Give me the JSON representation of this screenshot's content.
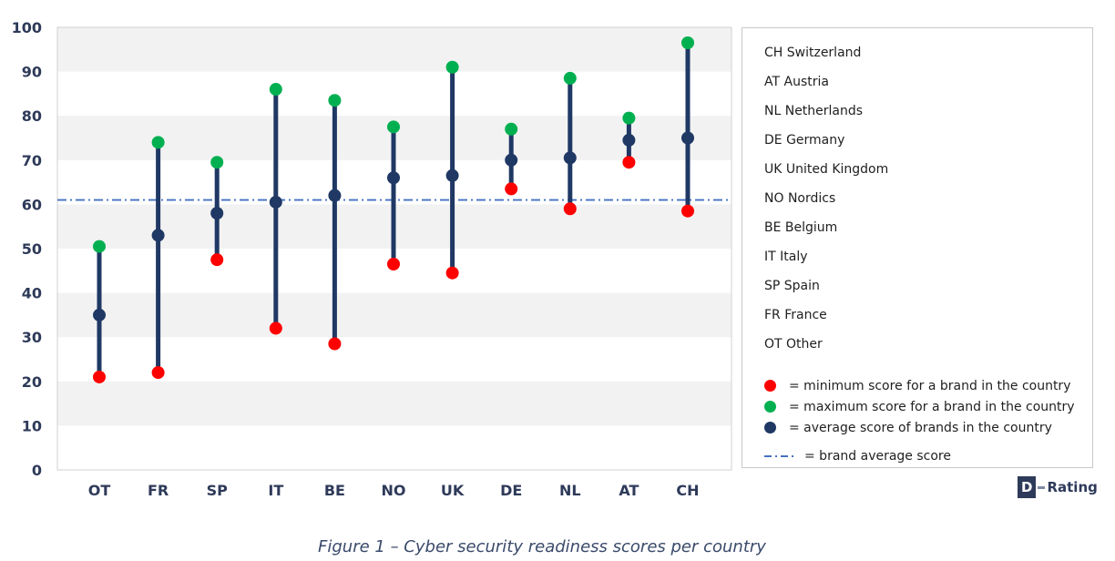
{
  "chart_data": {
    "type": "range-dot",
    "categories": [
      "OT",
      "FR",
      "SP",
      "IT",
      "BE",
      "NO",
      "UK",
      "DE",
      "NL",
      "AT",
      "CH"
    ],
    "series": [
      {
        "name": "minimum score for a brand in the country",
        "color": "#ff0000",
        "values": [
          21,
          22,
          47.5,
          32,
          28.5,
          46.5,
          44.5,
          63.5,
          59,
          69.5,
          58.5
        ]
      },
      {
        "name": "maximum score for a brand in the country",
        "color": "#00b050",
        "values": [
          50.5,
          74,
          69.5,
          86,
          83.5,
          77.5,
          91,
          77,
          88.5,
          79.5,
          96.5
        ]
      },
      {
        "name": "average score of brands in the country",
        "color": "#1f3864",
        "values": [
          35,
          53,
          58,
          60.5,
          62,
          66,
          66.5,
          70,
          70.5,
          74.5,
          75
        ]
      }
    ],
    "reference_line": {
      "name": "brand average score",
      "value": 61,
      "color": "#4472c4",
      "style": "dash-dot"
    },
    "ylim": [
      0,
      100
    ],
    "yticks": [
      0,
      10,
      20,
      30,
      40,
      50,
      60,
      70,
      80,
      90,
      100
    ],
    "grid": "alternating horizontal bands",
    "bar_color": "#1f3864",
    "band_color": "#f2f2f2",
    "legend_position": "right",
    "title": "",
    "xlabel": "",
    "ylabel": ""
  },
  "legend": {
    "countries": [
      "CH Switzerland",
      "AT Austria",
      "NL Netherlands",
      "DE Germany",
      "UK United Kingdom",
      "NO Nordics",
      "BE Belgium",
      "IT Italy",
      "SP Spain",
      "FR France",
      "OT Other"
    ],
    "min_label": "= minimum score for a brand in the country",
    "max_label": "= maximum score for a brand in the country",
    "avg_label": "= average score of brands in the country",
    "ref_label": "= brand average score"
  },
  "logo": {
    "letter": "D",
    "text": "Rating"
  },
  "caption": "Figure 1 – Cyber security readiness scores per country"
}
